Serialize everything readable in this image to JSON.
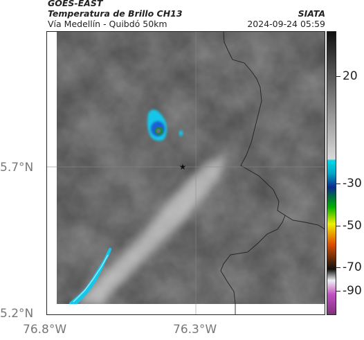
{
  "header": {
    "satellite": "GOES-EAST",
    "product": "Temperatura de Brillo CH13",
    "region": "Vía Medellín - Quibdó 50km",
    "agency": "SIATA",
    "timestamp": "2024-09-24 05:59"
  },
  "axes": {
    "lat_labels": [
      "5.7°N",
      "5.2°N"
    ],
    "lon_labels": [
      "76.8°W",
      "76.3°W"
    ]
  },
  "colorbar": {
    "labels": [
      "20",
      "-30",
      "-50",
      "-70",
      "-90"
    ],
    "colors": [
      "#111111",
      "#555555",
      "#999999",
      "#d8d8d8",
      "#00d8e8",
      "#0a2a8a",
      "#00b000",
      "#f0f000",
      "#e05000",
      "#101010",
      "#c050c0"
    ]
  },
  "map": {
    "marker": "star-icon",
    "colors": {
      "cold_cloud": "#16c6e8",
      "deep_core": "#1a5fd0",
      "core_center": "#22863c",
      "border": "#222222",
      "grid": "#888888"
    }
  }
}
